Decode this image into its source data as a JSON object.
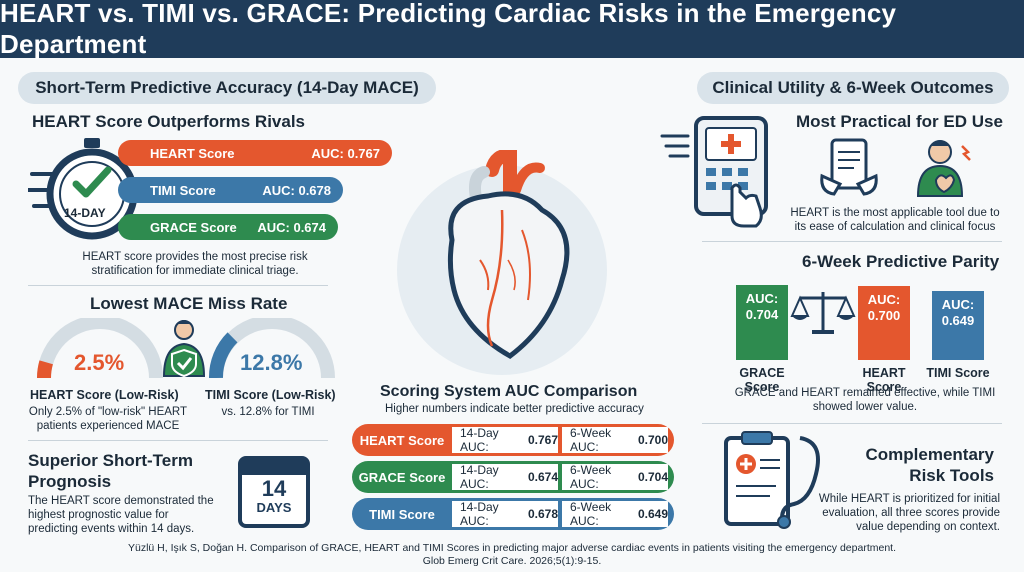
{
  "title": "HEART vs. TIMI vs. GRACE: Predicting Cardiac Risks in the Emergency Department",
  "left_section": {
    "heading": "Short-Term Predictive Accuracy (14-Day MACE)",
    "subheading": "HEART Score Outperforms Rivals",
    "stopwatch_label": "14-DAY",
    "bars": [
      {
        "name": "HEART Score",
        "auc": "AUC: 0.767",
        "color": "#e4572e"
      },
      {
        "name": "TIMI Score",
        "auc": "AUC: 0.678",
        "color": "#3c78a8"
      },
      {
        "name": "GRACE Score",
        "auc": "AUC: 0.674",
        "color": "#2e8b4f"
      }
    ],
    "bars_caption": "HEART score provides the most precise risk stratification for immediate clinical triage.",
    "miss_heading": "Lowest MACE Miss Rate",
    "heart_gauge": {
      "value": "2.5%",
      "label": "HEART Score (Low-Risk)",
      "fraction": 0.025
    },
    "timi_gauge": {
      "value": "12.8%",
      "label": "TIMI Score (Low-Risk)",
      "fraction": 0.128
    },
    "heart_note": "Only 2.5% of \"low-risk\" HEART patients experienced MACE",
    "timi_note": "vs. 12.8% for TIMI",
    "prognosis_heading_1": "Superior Short-Term",
    "prognosis_heading_2": "Prognosis",
    "prognosis_text": "The HEART score demonstrated the highest prognostic value for predicting events within 14 days.",
    "calendar_number": "14",
    "calendar_unit": "DAYS"
  },
  "center_section": {
    "heading": "Scoring System AUC Comparison",
    "subheading": "Higher numbers indicate better predictive accuracy",
    "rows": [
      {
        "name": "HEART Score",
        "d14": "14-Day AUC: ",
        "d14v": "0.767",
        "w6": "6-Week AUC: ",
        "w6v": "0.700",
        "color": "#e4572e"
      },
      {
        "name": "GRACE Score",
        "d14": "14-Day AUC: ",
        "d14v": "0.674",
        "w6": "6-Week AUC: ",
        "w6v": "0.704",
        "color": "#2e8b4f"
      },
      {
        "name": "TIMI Score",
        "d14": "14-Day AUC: ",
        "d14v": "0.678",
        "w6": "6-Week AUC: ",
        "w6v": "0.649",
        "color": "#3c78a8"
      }
    ]
  },
  "right_section": {
    "heading": "Clinical Utility & 6-Week Outcomes",
    "practical_heading": "Most Practical for ED Use",
    "practical_text": "HEART is the most applicable tool due to its ease of calculation and clinical focus",
    "parity_heading": "6-Week Predictive Parity",
    "parity_bars": [
      {
        "auc_label": "AUC:",
        "value": "0.704",
        "name": "GRACE Score",
        "color": "#2e8b4f",
        "num": 0.704
      },
      {
        "auc_label": "AUC:",
        "value": "0.700",
        "name": "HEART Score",
        "color": "#e4572e",
        "num": 0.7
      },
      {
        "auc_label": "AUC:",
        "value": "0.649",
        "name": "TIMI Score",
        "color": "#3c78a8",
        "num": 0.649
      }
    ],
    "parity_text": "GRACE and HEART remained effective, while TIMI showed lower value.",
    "complementary_heading_1": "Complementary",
    "complementary_heading_2": "Risk Tools",
    "complementary_text": "While HEART is prioritized for initial evaluation, all three scores provide value depending on context."
  },
  "citation_line1": "Yüzlü H, Işık S, Doğan H. Comparison of GRACE, HEART and TIMI Scores in predicting major adverse cardiac events in patients visiting the emergency department.",
  "citation_line2": "Glob Emerg Crit Care. 2026;5(1):9-15."
}
